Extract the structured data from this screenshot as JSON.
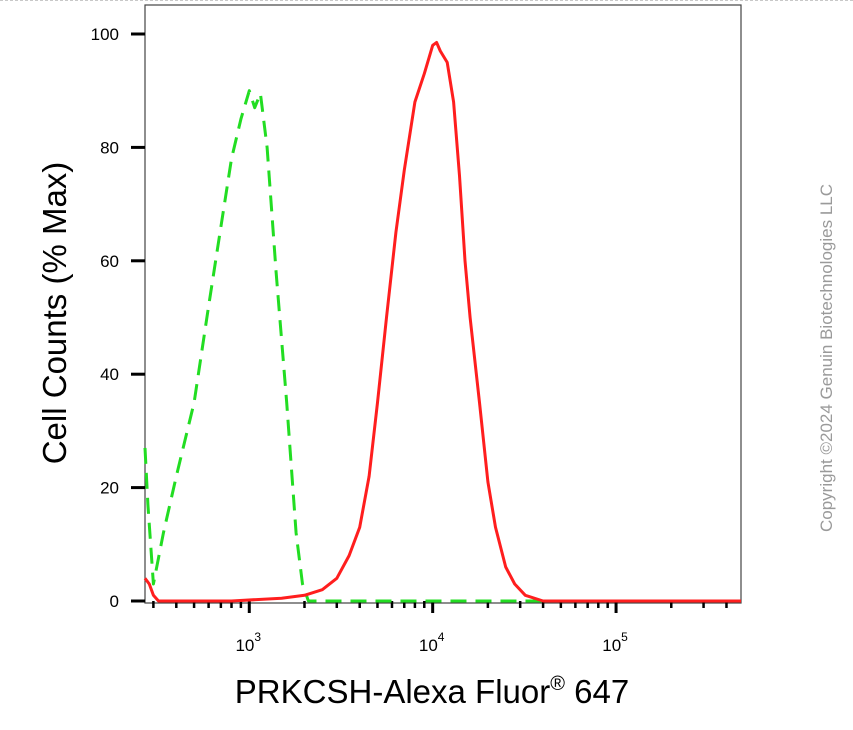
{
  "chart_data": {
    "type": "line",
    "title": "",
    "xlabel_main": "PRKCSH-Alexa Fluor",
    "xlabel_sup": "®",
    "xlabel_tail": " 647",
    "ylabel": "Cell Counts (% Max)",
    "x_scale": "log",
    "xlim": [
      270,
      480000
    ],
    "ylim": [
      0,
      105
    ],
    "y_ticks": [
      "0",
      "20",
      "40",
      "60",
      "80",
      "100"
    ],
    "x_ticks": [
      {
        "base": "10",
        "exp": "3",
        "value": 1000
      },
      {
        "base": "10",
        "exp": "4",
        "value": 10000
      },
      {
        "base": "10",
        "exp": "5",
        "value": 100000
      }
    ],
    "grid": false,
    "series": [
      {
        "color": "#22dd22",
        "style": "dashed",
        "points": [
          [
            270,
            27
          ],
          [
            280,
            17
          ],
          [
            300,
            3
          ],
          [
            340,
            12
          ],
          [
            400,
            22
          ],
          [
            500,
            35
          ],
          [
            600,
            52
          ],
          [
            700,
            66
          ],
          [
            800,
            78
          ],
          [
            900,
            85
          ],
          [
            1000,
            90
          ],
          [
            1070,
            87
          ],
          [
            1150,
            89.5
          ],
          [
            1250,
            80
          ],
          [
            1400,
            58
          ],
          [
            1600,
            35
          ],
          [
            1800,
            12
          ],
          [
            1950,
            3
          ],
          [
            2100,
            0
          ],
          [
            3000,
            0
          ],
          [
            10000,
            0
          ],
          [
            100000,
            0
          ],
          [
            480000,
            0
          ]
        ]
      },
      {
        "color": "#ff1e1e",
        "style": "solid",
        "points": [
          [
            270,
            4
          ],
          [
            285,
            3
          ],
          [
            300,
            1
          ],
          [
            320,
            0
          ],
          [
            500,
            0
          ],
          [
            800,
            0
          ],
          [
            1500,
            0.5
          ],
          [
            2000,
            1
          ],
          [
            2500,
            2
          ],
          [
            3000,
            4
          ],
          [
            3500,
            8
          ],
          [
            4000,
            13
          ],
          [
            4500,
            22
          ],
          [
            5000,
            35
          ],
          [
            5600,
            50
          ],
          [
            6300,
            65
          ],
          [
            7000,
            76
          ],
          [
            8000,
            88
          ],
          [
            9000,
            93
          ],
          [
            10000,
            98
          ],
          [
            10500,
            98.5
          ],
          [
            11000,
            97
          ],
          [
            12000,
            95
          ],
          [
            13000,
            88
          ],
          [
            14000,
            75
          ],
          [
            15000,
            60
          ],
          [
            16000,
            50
          ],
          [
            18000,
            35
          ],
          [
            20000,
            21
          ],
          [
            22000,
            13
          ],
          [
            25000,
            6
          ],
          [
            28000,
            3
          ],
          [
            32000,
            1
          ],
          [
            40000,
            0
          ],
          [
            480000,
            0
          ]
        ]
      }
    ]
  },
  "watermark": "Copyright ©2024 Genuin Biotechnologies LLC"
}
